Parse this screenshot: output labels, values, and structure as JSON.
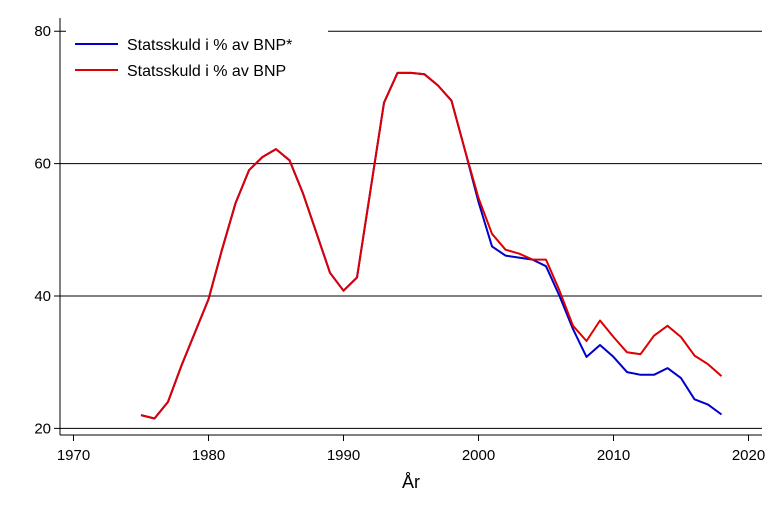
{
  "chart_data": {
    "type": "line",
    "title": "",
    "xlabel": "År",
    "ylabel": "",
    "xlim": [
      1969,
      2021
    ],
    "ylim": [
      19,
      82
    ],
    "x_ticks": [
      1970,
      1980,
      1990,
      2000,
      2010,
      2020
    ],
    "y_ticks": [
      20,
      40,
      60,
      80
    ],
    "grid": "horizontal",
    "legend_position": "top-left",
    "series": [
      {
        "name": "Statsskuld i % av BNP*",
        "color": "#0000cc",
        "x": [
          1975,
          1976,
          1977,
          1978,
          1979,
          1980,
          1981,
          1982,
          1983,
          1984,
          1985,
          1986,
          1987,
          1988,
          1989,
          1990,
          1991,
          1992,
          1993,
          1994,
          1995,
          1996,
          1997,
          1998,
          1999,
          2000,
          2001,
          2002,
          2003,
          2004,
          2005,
          2006,
          2007,
          2008,
          2009,
          2010,
          2011,
          2012,
          2013,
          2014,
          2015,
          2016,
          2017,
          2018
        ],
        "values": [
          22.0,
          21.5,
          24.0,
          29.5,
          34.5,
          39.5,
          47.0,
          54.0,
          59.0,
          61.0,
          62.2,
          60.5,
          55.5,
          49.5,
          43.5,
          40.8,
          42.8,
          56.0,
          69.2,
          73.7,
          73.7,
          73.5,
          71.8,
          69.5,
          62.0,
          54.2,
          47.5,
          46.1,
          45.8,
          45.5,
          44.5,
          40.0,
          35.0,
          30.8,
          32.6,
          30.8,
          28.5,
          28.1,
          28.1,
          29.1,
          27.6,
          24.4,
          23.6,
          22.1
        ]
      },
      {
        "name": "Statsskuld i % av BNP",
        "color": "#dd0000",
        "x": [
          1975,
          1976,
          1977,
          1978,
          1979,
          1980,
          1981,
          1982,
          1983,
          1984,
          1985,
          1986,
          1987,
          1988,
          1989,
          1990,
          1991,
          1992,
          1993,
          1994,
          1995,
          1996,
          1997,
          1998,
          1999,
          2000,
          2001,
          2002,
          2003,
          2004,
          2005,
          2006,
          2007,
          2008,
          2009,
          2010,
          2011,
          2012,
          2013,
          2014,
          2015,
          2016,
          2017,
          2018
        ],
        "values": [
          22.0,
          21.5,
          24.0,
          29.5,
          34.5,
          39.5,
          47.0,
          54.0,
          59.0,
          61.0,
          62.2,
          60.5,
          55.5,
          49.5,
          43.5,
          40.8,
          42.8,
          56.0,
          69.2,
          73.7,
          73.7,
          73.5,
          71.8,
          69.5,
          62.0,
          54.8,
          49.4,
          47.0,
          46.4,
          45.5,
          45.5,
          40.8,
          35.5,
          33.2,
          36.3,
          33.8,
          31.5,
          31.2,
          34.0,
          35.5,
          33.8,
          31.0,
          29.7,
          27.9
        ]
      }
    ]
  }
}
